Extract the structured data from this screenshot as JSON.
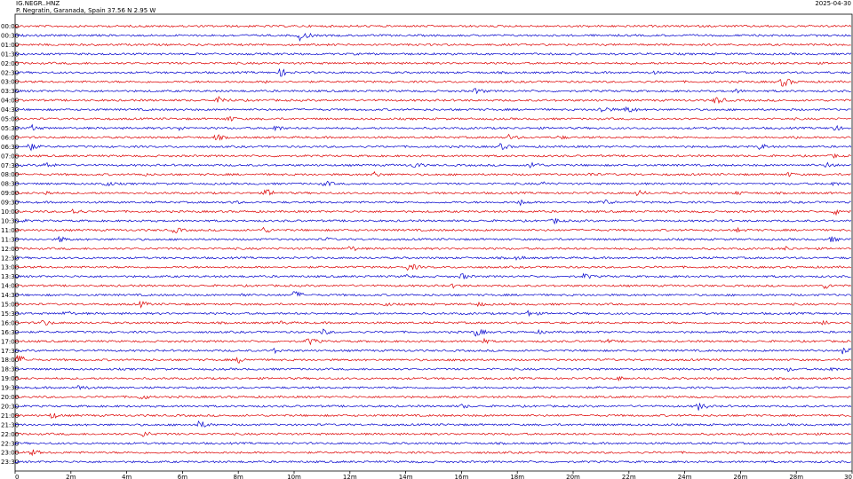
{
  "header": {
    "station": "IG.NEGR..HNZ",
    "location": "P. Negratin, Garanada, Spain  37.56 N 2.95 W",
    "date": "2025-04-30"
  },
  "chart_data": {
    "type": "line",
    "title": "IG.NEGR..HNZ",
    "subtitle": "P. Negratin, Garanada, Spain  37.56 N 2.95 W",
    "date_label": "2025-04-30",
    "row_labels": [
      "00:00",
      "00:30",
      "01:00",
      "01:30",
      "02:00",
      "02:30",
      "03:00",
      "03:30",
      "04:00",
      "04:30",
      "05:00",
      "05:30",
      "06:00",
      "06:30",
      "07:00",
      "07:30",
      "08:00",
      "08:30",
      "09:00",
      "09:30",
      "10:00",
      "10:30",
      "11:00",
      "11:30",
      "12:00",
      "12:30",
      "13:00",
      "13:30",
      "14:00",
      "14:30",
      "15:00",
      "15:30",
      "16:00",
      "16:30",
      "17:00",
      "17:30",
      "18:00",
      "18:30",
      "19:00",
      "19:30",
      "20:00",
      "20:30",
      "21:00",
      "21:30",
      "22:00",
      "22:30",
      "23:00",
      "23:30"
    ],
    "row_color_pattern": [
      "#dd0000",
      "#0000cc"
    ],
    "x_ticks": [
      "0",
      "2m",
      "4m",
      "6m",
      "8m",
      "10m",
      "12m",
      "14m",
      "16m",
      "18m",
      "20m",
      "22m",
      "24m",
      "26m",
      "28m",
      "30"
    ],
    "xlim": [
      0,
      30
    ],
    "bursts": [
      {
        "row": 1,
        "t": 10.2,
        "amp": 6
      },
      {
        "row": 4,
        "t": 2.2,
        "amp": 2
      },
      {
        "row": 5,
        "t": 9.5,
        "amp": 5
      },
      {
        "row": 5,
        "t": 22.8,
        "amp": 3
      },
      {
        "row": 6,
        "t": 9.0,
        "amp": 2
      },
      {
        "row": 6,
        "t": 27.5,
        "amp": 6
      },
      {
        "row": 7,
        "t": 16.5,
        "amp": 4
      },
      {
        "row": 7,
        "t": 25.8,
        "amp": 3
      },
      {
        "row": 8,
        "t": 7.3,
        "amp": 5
      },
      {
        "row": 8,
        "t": 25.1,
        "amp": 5
      },
      {
        "row": 9,
        "t": 21.0,
        "amp": 5
      },
      {
        "row": 9,
        "t": 21.9,
        "amp": 5
      },
      {
        "row": 10,
        "t": 7.6,
        "amp": 4
      },
      {
        "row": 11,
        "t": 0.6,
        "amp": 4
      },
      {
        "row": 11,
        "t": 5.9,
        "amp": 3
      },
      {
        "row": 11,
        "t": 9.3,
        "amp": 4
      },
      {
        "row": 11,
        "t": 29.3,
        "amp": 4
      },
      {
        "row": 12,
        "t": 7.2,
        "amp": 4
      },
      {
        "row": 12,
        "t": 17.7,
        "amp": 4
      },
      {
        "row": 12,
        "t": 19.5,
        "amp": 3
      },
      {
        "row": 12,
        "t": 27.8,
        "amp": 3
      },
      {
        "row": 13,
        "t": 0.5,
        "amp": 5
      },
      {
        "row": 13,
        "t": 17.4,
        "amp": 4
      },
      {
        "row": 13,
        "t": 26.7,
        "amp": 4
      },
      {
        "row": 14,
        "t": 29.3,
        "amp": 3
      },
      {
        "row": 15,
        "t": 1.1,
        "amp": 4
      },
      {
        "row": 15,
        "t": 14.3,
        "amp": 4
      },
      {
        "row": 15,
        "t": 18.5,
        "amp": 5
      },
      {
        "row": 15,
        "t": 29.1,
        "amp": 4
      },
      {
        "row": 16,
        "t": 4.5,
        "amp": 3
      },
      {
        "row": 16,
        "t": 12.8,
        "amp": 4
      },
      {
        "row": 16,
        "t": 20.6,
        "amp": 3
      },
      {
        "row": 16,
        "t": 27.7,
        "amp": 3
      },
      {
        "row": 17,
        "t": 3.2,
        "amp": 4
      },
      {
        "row": 17,
        "t": 11.1,
        "amp": 4
      },
      {
        "row": 17,
        "t": 18.9,
        "amp": 3
      },
      {
        "row": 17,
        "t": 29.3,
        "amp": 3
      },
      {
        "row": 18,
        "t": 1.0,
        "amp": 4
      },
      {
        "row": 18,
        "t": 9.0,
        "amp": 5
      },
      {
        "row": 18,
        "t": 22.3,
        "amp": 4
      },
      {
        "row": 18,
        "t": 25.9,
        "amp": 3
      },
      {
        "row": 19,
        "t": 7.8,
        "amp": 3
      },
      {
        "row": 19,
        "t": 18.1,
        "amp": 4
      },
      {
        "row": 19,
        "t": 21.1,
        "amp": 4
      },
      {
        "row": 20,
        "t": 2.1,
        "amp": 4
      },
      {
        "row": 20,
        "t": 29.4,
        "amp": 5
      },
      {
        "row": 21,
        "t": 0.2,
        "amp": 3
      },
      {
        "row": 21,
        "t": 19.3,
        "amp": 4
      },
      {
        "row": 22,
        "t": 5.7,
        "amp": 4
      },
      {
        "row": 22,
        "t": 8.9,
        "amp": 4
      },
      {
        "row": 22,
        "t": 25.9,
        "amp": 3
      },
      {
        "row": 23,
        "t": 1.6,
        "amp": 4
      },
      {
        "row": 23,
        "t": 11.1,
        "amp": 3
      },
      {
        "row": 23,
        "t": 29.2,
        "amp": 4
      },
      {
        "row": 24,
        "t": 12.0,
        "amp": 4
      },
      {
        "row": 24,
        "t": 27.6,
        "amp": 3
      },
      {
        "row": 25,
        "t": 18.0,
        "amp": 3
      },
      {
        "row": 26,
        "t": 14.1,
        "amp": 5
      },
      {
        "row": 27,
        "t": 14.0,
        "amp": 3
      },
      {
        "row": 27,
        "t": 16.0,
        "amp": 4
      },
      {
        "row": 27,
        "t": 20.4,
        "amp": 4
      },
      {
        "row": 28,
        "t": 15.7,
        "amp": 3
      },
      {
        "row": 28,
        "t": 29.0,
        "amp": 4
      },
      {
        "row": 29,
        "t": 10.0,
        "amp": 5
      },
      {
        "row": 29,
        "t": 8.1,
        "amp": 3
      },
      {
        "row": 30,
        "t": 4.5,
        "amp": 4
      },
      {
        "row": 30,
        "t": 13.2,
        "amp": 3
      },
      {
        "row": 30,
        "t": 16.6,
        "amp": 3
      },
      {
        "row": 31,
        "t": 1.8,
        "amp": 4
      },
      {
        "row": 31,
        "t": 18.4,
        "amp": 4
      },
      {
        "row": 32,
        "t": 1.0,
        "amp": 4
      },
      {
        "row": 32,
        "t": 9.5,
        "amp": 3
      },
      {
        "row": 32,
        "t": 29.0,
        "amp": 4
      },
      {
        "row": 33,
        "t": 11.0,
        "amp": 4
      },
      {
        "row": 33,
        "t": 16.5,
        "amp": 5
      },
      {
        "row": 33,
        "t": 18.8,
        "amp": 3
      },
      {
        "row": 34,
        "t": 10.5,
        "amp": 5
      },
      {
        "row": 34,
        "t": 16.7,
        "amp": 4
      },
      {
        "row": 34,
        "t": 21.2,
        "amp": 3
      },
      {
        "row": 35,
        "t": 9.2,
        "amp": 4
      },
      {
        "row": 35,
        "t": 29.7,
        "amp": 6
      },
      {
        "row": 36,
        "t": 0.1,
        "amp": 6
      },
      {
        "row": 36,
        "t": 8.0,
        "amp": 4
      },
      {
        "row": 36,
        "t": 16.0,
        "amp": 3
      },
      {
        "row": 37,
        "t": 29.1,
        "amp": 4
      },
      {
        "row": 37,
        "t": 27.7,
        "amp": 3
      },
      {
        "row": 38,
        "t": 21.6,
        "amp": 3
      },
      {
        "row": 39,
        "t": 2.3,
        "amp": 4
      },
      {
        "row": 40,
        "t": 4.5,
        "amp": 4
      },
      {
        "row": 41,
        "t": 16.0,
        "amp": 3
      },
      {
        "row": 41,
        "t": 24.5,
        "amp": 5
      },
      {
        "row": 42,
        "t": 1.3,
        "amp": 4
      },
      {
        "row": 43,
        "t": 6.6,
        "amp": 5
      },
      {
        "row": 44,
        "t": 4.6,
        "amp": 4
      },
      {
        "row": 46,
        "t": 0.6,
        "amp": 4
      }
    ]
  }
}
